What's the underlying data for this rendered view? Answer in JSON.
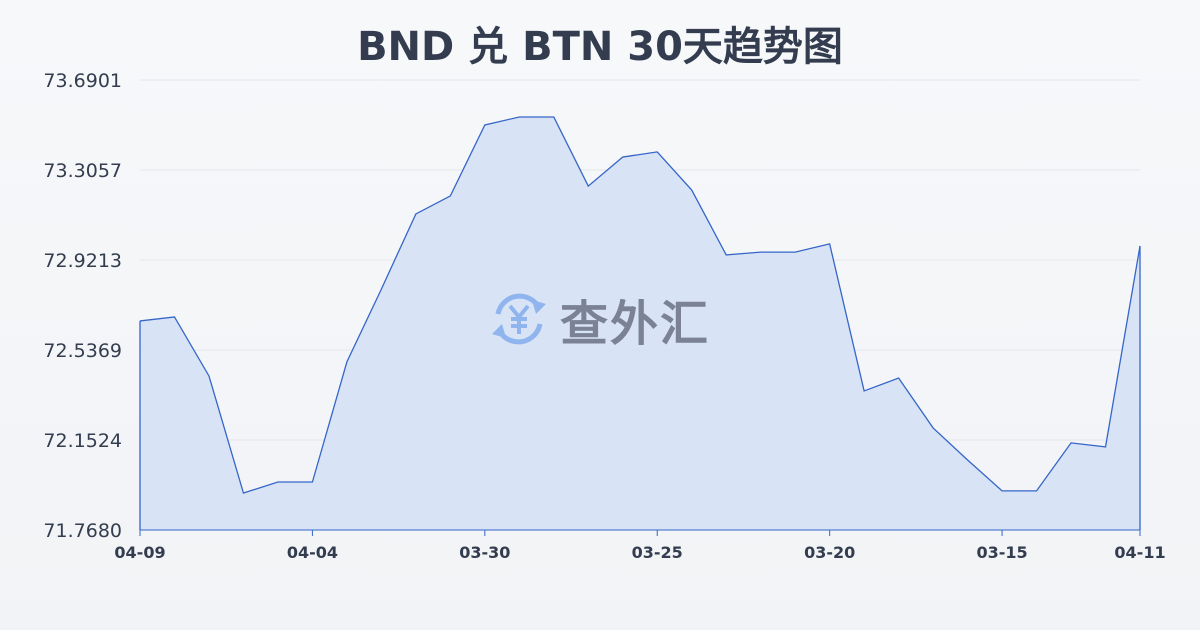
{
  "chart_data": {
    "type": "area",
    "title": "BND 兑 BTN 30天趋势图",
    "xlabel": "",
    "ylabel": "",
    "ylim": [
      71.768,
      73.6901
    ],
    "yticks": [
      "71.7680",
      "72.1524",
      "72.5369",
      "72.9213",
      "73.3057",
      "73.6901"
    ],
    "xtick_labels": [
      {
        "index": 0,
        "label": "04-09"
      },
      {
        "index": 5,
        "label": "04-04"
      },
      {
        "index": 10,
        "label": "03-30"
      },
      {
        "index": 15,
        "label": "03-25"
      },
      {
        "index": 20,
        "label": "03-20"
      },
      {
        "index": 25,
        "label": "03-15"
      },
      {
        "index": 29,
        "label": "04-11"
      }
    ],
    "values": [
      72.661,
      72.678,
      72.426,
      71.926,
      71.973,
      71.973,
      72.486,
      72.797,
      73.118,
      73.195,
      73.498,
      73.532,
      73.532,
      73.237,
      73.361,
      73.383,
      73.22,
      72.943,
      72.955,
      72.955,
      72.99,
      72.362,
      72.417,
      72.204,
      72.067,
      71.935,
      71.935,
      72.14,
      72.123,
      72.981
    ],
    "grid": true,
    "line_color": "#3566c8",
    "fill_color": "#d6e1f5"
  },
  "watermark": {
    "text": "查外汇",
    "icon": "yuan-exchange-icon"
  }
}
